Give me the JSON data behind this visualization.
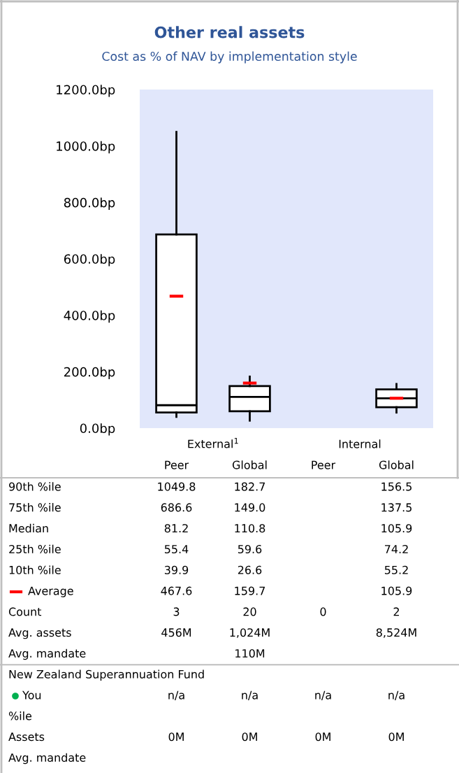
{
  "chart_data": {
    "type": "box",
    "title": "Other real assets",
    "subtitle": "Cost as % of NAV by implementation style",
    "categories": [
      "Peer",
      "Global",
      "Peer",
      "Global"
    ],
    "boxes": [
      {
        "low": 39.9,
        "q1": 55.4,
        "median": 81.2,
        "q3": 686.6,
        "high": 1049.8,
        "mean": 467.6
      },
      {
        "low": 26.6,
        "q1": 59.6,
        "median": 110.8,
        "q3": 149.0,
        "high": 182.7,
        "mean": 159.7
      },
      null,
      {
        "low": 55.2,
        "q1": 74.2,
        "median": 105.9,
        "q3": 137.5,
        "high": 156.5,
        "mean": 105.9
      }
    ],
    "ylim": [
      0,
      1200
    ],
    "yticks": [
      {
        "value": 0,
        "label": "0.0bp"
      },
      {
        "value": 200,
        "label": "200.0bp"
      },
      {
        "value": 400,
        "label": "400.0bp"
      },
      {
        "value": 600,
        "label": "600.0bp"
      },
      {
        "value": 800,
        "label": "800.0bp"
      },
      {
        "value": 1000,
        "label": "1000.0bp"
      },
      {
        "value": 1200,
        "label": "1200.0bp"
      }
    ],
    "annotations": [
      "External$^{1}$",
      "Internal",
      "90th %ile",
      "1049.8",
      "182.7",
      null,
      "156.5",
      "75th %ile",
      "686.6",
      "149.0",
      null,
      "137.5",
      "Median",
      "81.2",
      "110.8",
      null,
      "105.9",
      "25th %ile",
      "55.4",
      "59.6",
      null,
      "74.2",
      "10th %ile",
      "39.9",
      "26.6",
      null,
      "55.2",
      "Average",
      "467.6",
      "159.7",
      null,
      "105.9",
      "Count",
      "3",
      "20",
      "0",
      "2",
      "Avg. assets",
      "456M",
      "1,024M",
      null,
      "8,524M",
      "Avg. mandate",
      null,
      "110M",
      null,
      null,
      "New Zealand Superannuation Fund",
      null,
      null,
      null,
      null,
      "You",
      "n/a",
      "n/a",
      "n/a",
      "n/a",
      "%ile",
      null,
      null,
      null,
      null,
      "Assets",
      "0M",
      "0M",
      "0M",
      "0M",
      "Avg. mandate",
      null,
      null,
      null,
      null
    ]
  }
}
